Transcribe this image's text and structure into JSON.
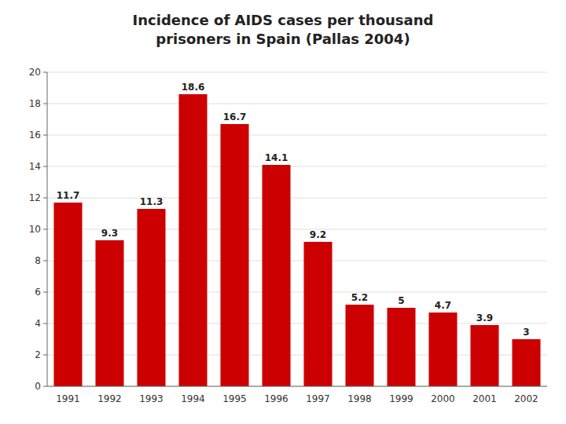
{
  "chart_data": {
    "type": "bar",
    "title": "Incidence of AIDS cases per thousand",
    "subtitle": "prisoners in Spain (Pallas 2004)",
    "categories": [
      "1991",
      "1992",
      "1993",
      "1994",
      "1995",
      "1996",
      "1997",
      "1998",
      "1999",
      "2000",
      "2001",
      "2002"
    ],
    "values": [
      11.7,
      9.3,
      11.3,
      18.6,
      16.7,
      14.1,
      9.2,
      5.2,
      5.0,
      4.7,
      3.9,
      3.0
    ],
    "value_labels": [
      "11.7",
      "9.3",
      "11.3",
      "18.6",
      "16.7",
      "14.1",
      "9.2",
      "5.2",
      "5",
      "4.7",
      "3.9",
      "3"
    ],
    "data_labels": true,
    "color": "#CC0000",
    "ylim": [
      0,
      20
    ],
    "yticks": [
      0,
      2,
      4,
      6,
      8,
      10,
      12,
      14,
      16,
      18,
      20
    ],
    "grid": true
  }
}
